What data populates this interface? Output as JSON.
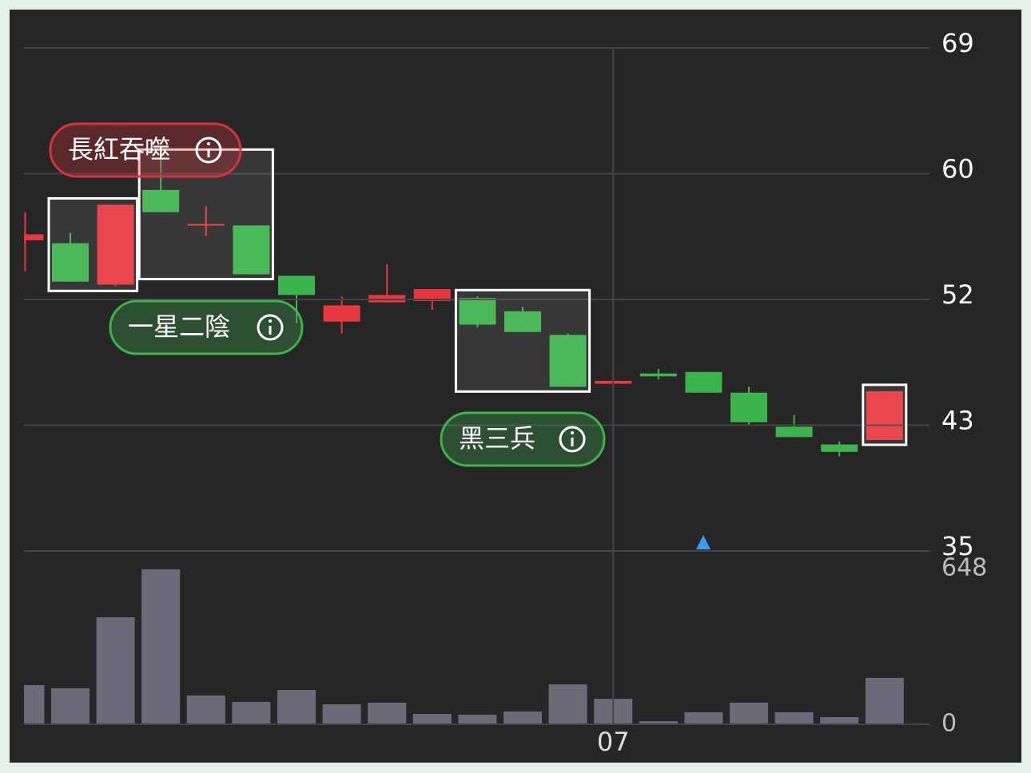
{
  "chart_data": {
    "type": "candlestick",
    "categories": [
      null,
      null,
      null,
      null,
      null,
      null,
      null,
      null,
      null,
      null,
      null,
      null,
      null,
      "07",
      null,
      null,
      null,
      null,
      null,
      null
    ],
    "open": [
      55.8,
      55.6,
      52.8,
      59.2,
      56.9,
      56.8,
      53.4,
      50.3,
      51.6,
      51.7,
      51.9,
      51.0,
      49.4,
      46.1,
      46.8,
      46.9,
      45.5,
      43.2,
      42.0,
      42.3
    ],
    "high": [
      57.7,
      56.3,
      58.2,
      61.5,
      58.1,
      56.8,
      53.4,
      52.0,
      54.2,
      52.5,
      52.0,
      51.3,
      49.5,
      47.1,
      47.1,
      46.9,
      45.9,
      44.0,
      42.2,
      45.6
    ],
    "low": [
      53.7,
      53.0,
      52.7,
      57.7,
      56.1,
      53.5,
      50.2,
      49.5,
      51.6,
      51.1,
      49.9,
      49.6,
      45.9,
      46.1,
      46.4,
      45.5,
      43.3,
      42.5,
      41.2,
      42.3
    ],
    "close": [
      56.2,
      53.0,
      58.2,
      57.7,
      56.9,
      53.5,
      52.1,
      51.4,
      52.1,
      52.5,
      50.1,
      49.6,
      45.9,
      46.3,
      46.6,
      45.5,
      43.5,
      42.5,
      41.5,
      45.6
    ],
    "up_color": "#e8373f",
    "down_color": "#3cb44b",
    "ylim": [
      34.8,
      68.8
    ],
    "yticks": [
      {
        "value": 68.8,
        "label": "69"
      },
      {
        "value": 60.3,
        "label": "60"
      },
      {
        "value": 51.8,
        "label": "52"
      },
      {
        "value": 43.3,
        "label": "43"
      },
      {
        "value": 34.8,
        "label": "35"
      }
    ],
    "grid": true,
    "volume": {
      "values": [
        163,
        150,
        445,
        645,
        120,
        93,
        143,
        83,
        90,
        43,
        40,
        53,
        166,
        106,
        13,
        50,
        90,
        50,
        30,
        193
      ],
      "color": "#6c6a78",
      "ylim": [
        0,
        648
      ],
      "yticks": [
        648,
        0
      ]
    },
    "annotations": [
      {
        "text": "長紅吞噬",
        "color": "#d8323a"
      },
      {
        "text": "一星二陰",
        "color": "#3cb44b"
      },
      {
        "text": "黑三兵",
        "color": "#3cb44b"
      }
    ]
  }
}
